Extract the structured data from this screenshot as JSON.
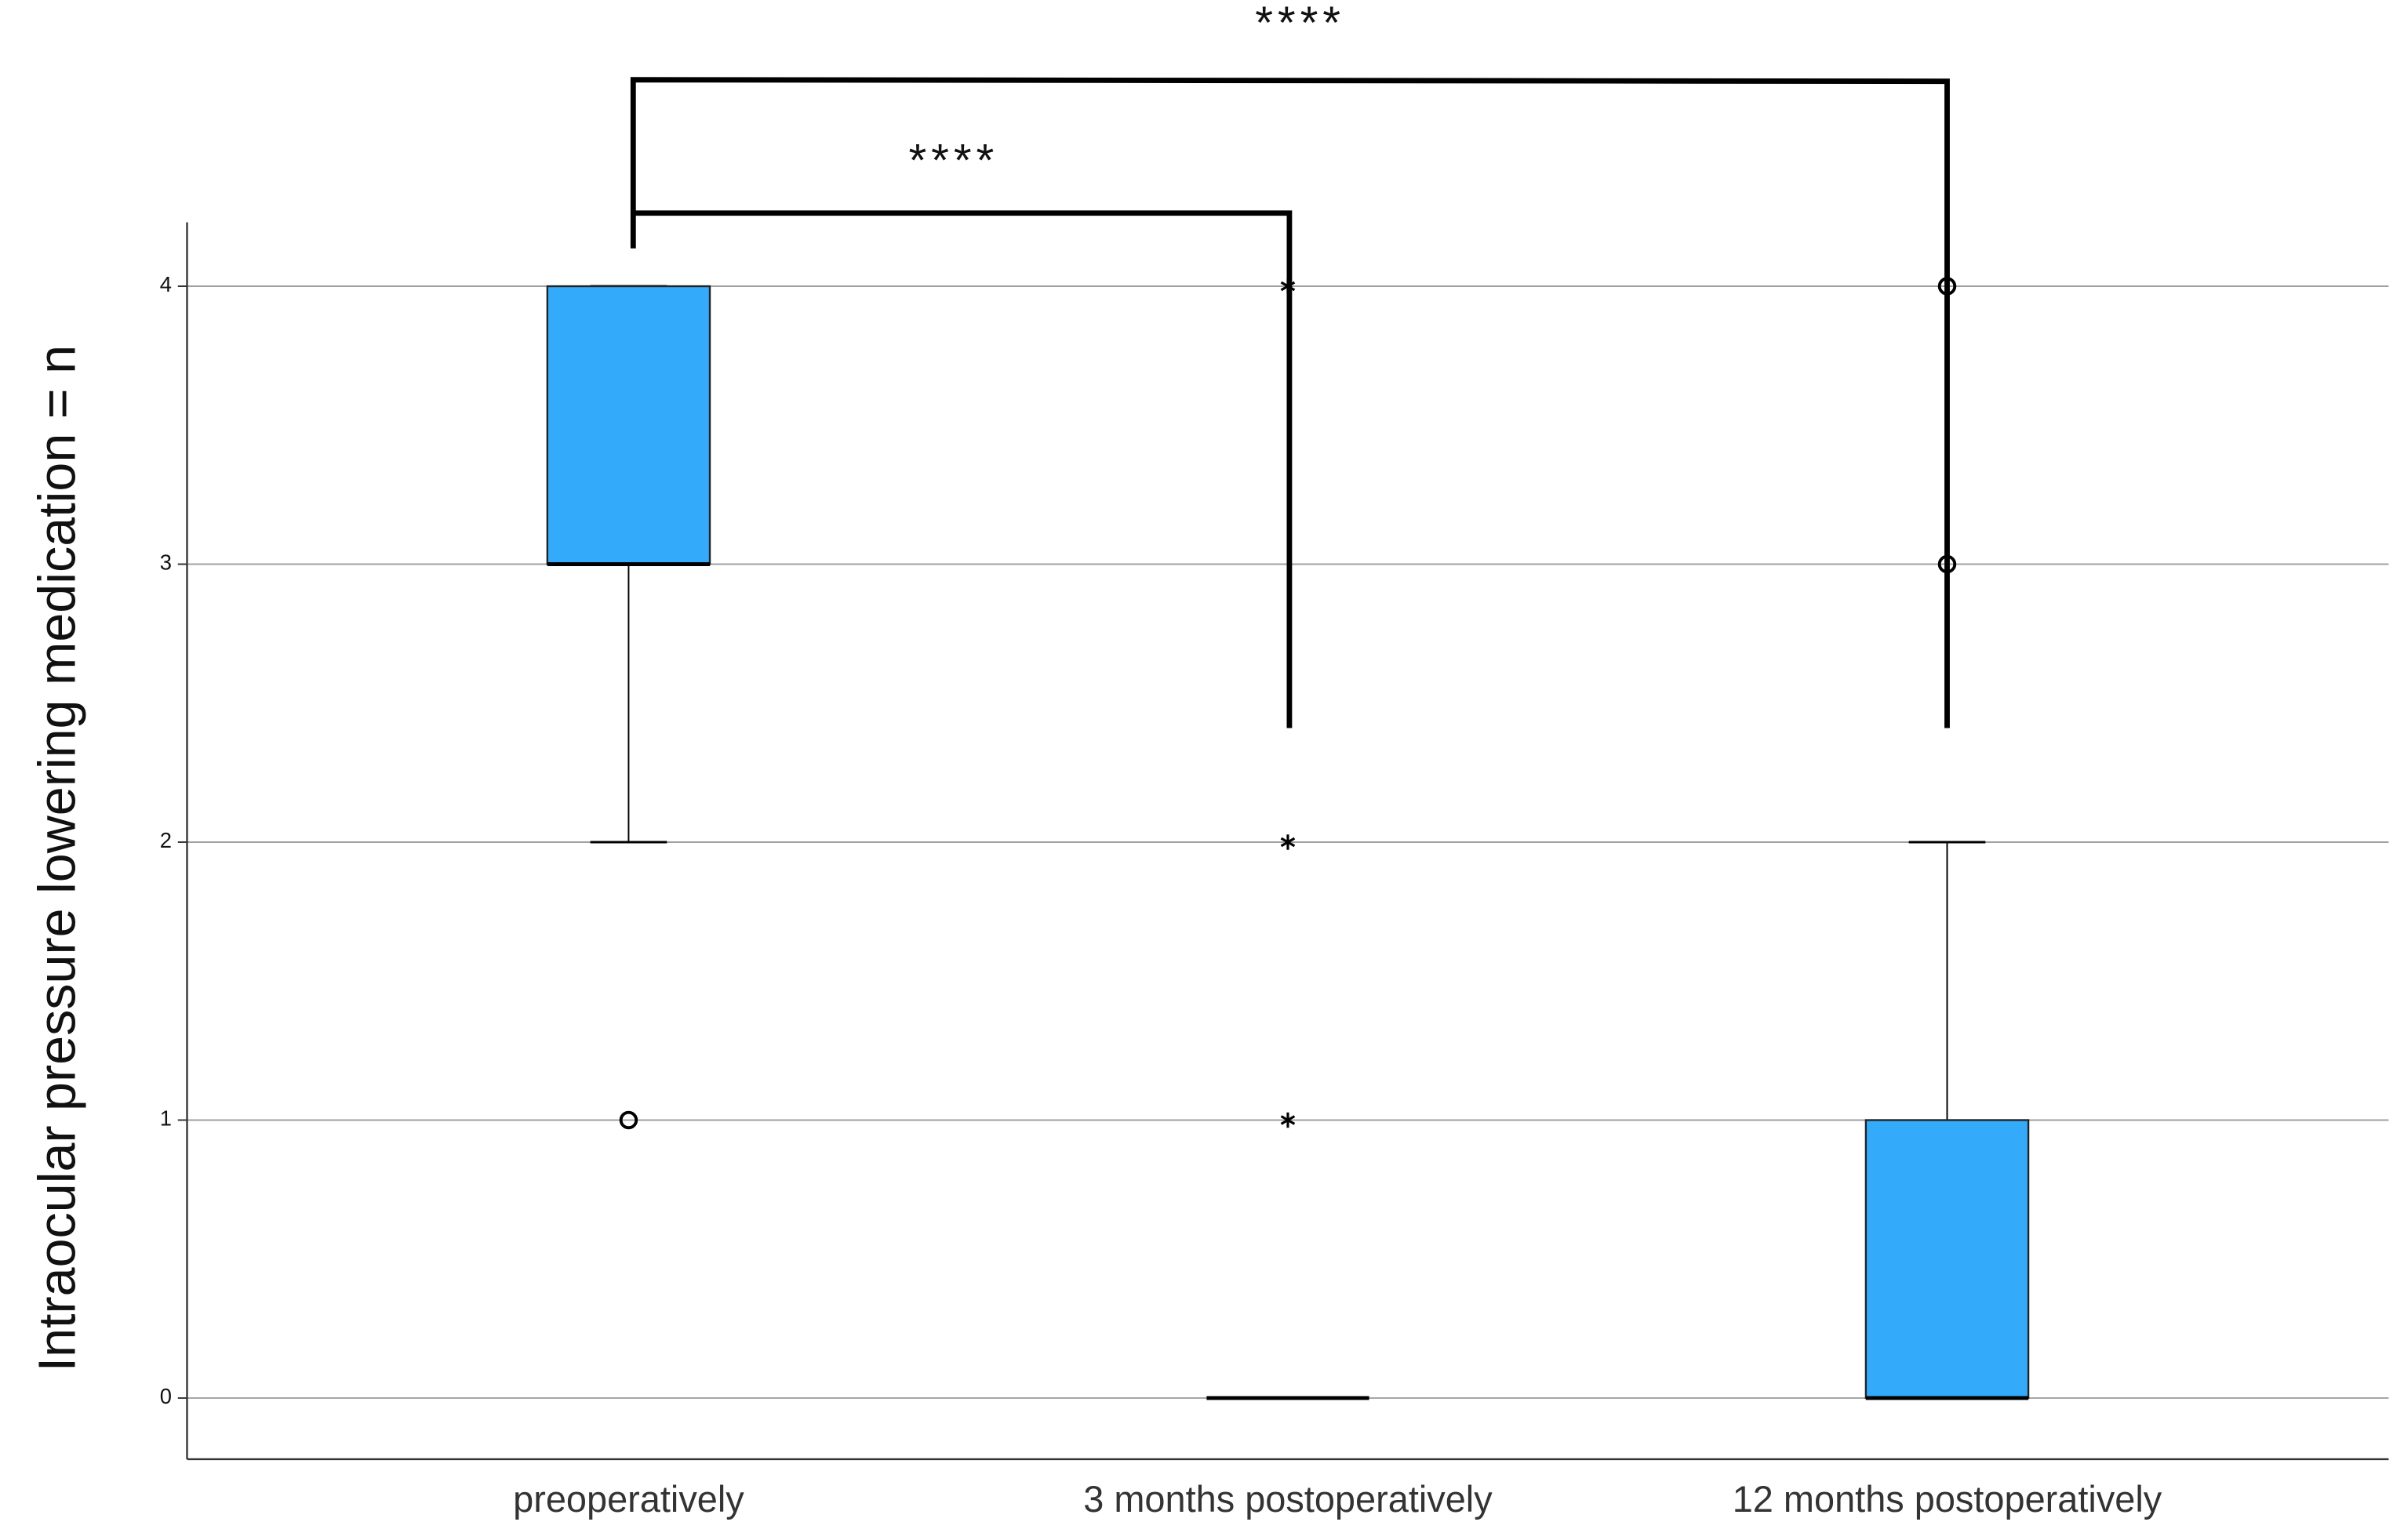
{
  "chart_data": {
    "type": "box",
    "y_label": "Intraocular pressure lowering medication = n",
    "categories": [
      "preoperatively",
      "3 months postoperatively",
      "12 months postoperatively"
    ],
    "boxes": [
      {
        "whislo": 2,
        "q1": 3,
        "med": 3,
        "q3": 4,
        "whishi": 4,
        "fliers": [
          1
        ],
        "flier_marker": "circle"
      },
      {
        "whislo": 0,
        "q1": 0,
        "med": 0,
        "q3": 0,
        "whishi": 0,
        "fliers": [
          1,
          2,
          4
        ],
        "flier_marker": "star"
      },
      {
        "whislo": 0,
        "q1": 0,
        "med": 0,
        "q3": 1,
        "whishi": 2,
        "fliers": [
          3,
          4
        ],
        "flier_marker": "circle"
      }
    ],
    "color": "#33aafa",
    "ylim": [
      -0.22,
      4.23
    ],
    "yticks": [
      0,
      1,
      2,
      3,
      4
    ],
    "grid": true,
    "annotations": [
      "****",
      "****"
    ]
  }
}
